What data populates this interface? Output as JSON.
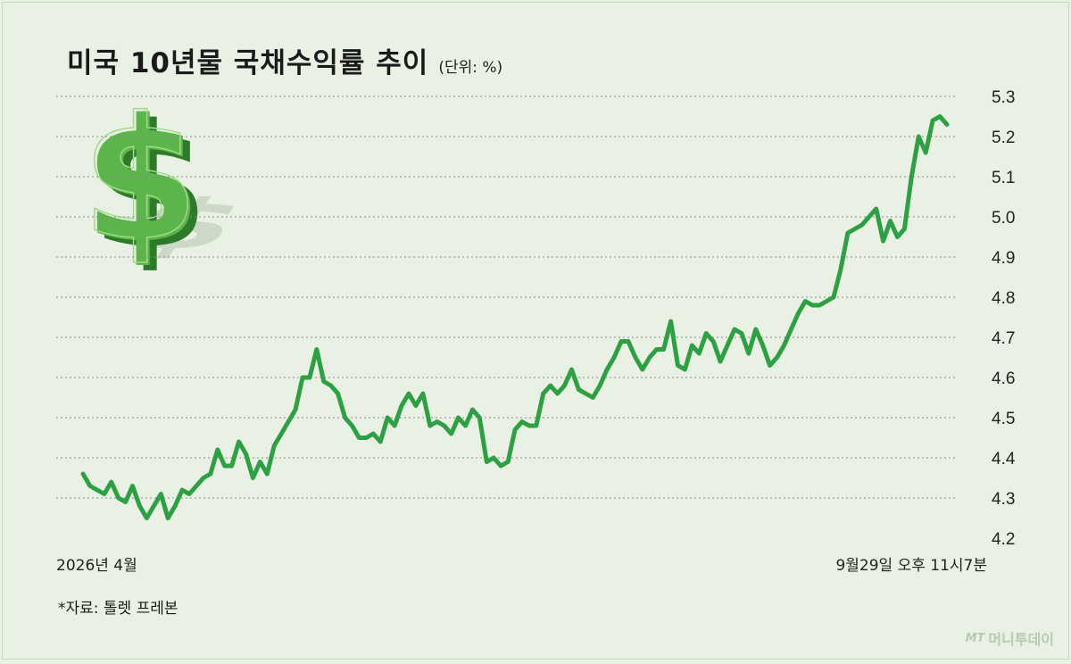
{
  "header": {
    "title": "미국 10년물 국채수익률 추이",
    "unit": "(단위: %)"
  },
  "footer": {
    "source": "*자료: 톨렛 프레본",
    "brand_mark": "MT",
    "brand_name": "머니투데이"
  },
  "icons": {
    "dollar": "dollar-sign-icon",
    "brand": "brand-logo-icon"
  },
  "colors": {
    "background": "#e8f1e4",
    "line": "#2ea043",
    "grid": "#8a8a8a",
    "dollar": "#5cb54a"
  },
  "chart_data": {
    "type": "line",
    "title": "미국 10년물 국채수익률 추이",
    "xlabel": "",
    "ylabel": "",
    "unit": "%",
    "x_start_label": "2026년 4월",
    "x_end_label": "9월29일 오후 11시7분",
    "ylim": [
      4.2,
      5.3
    ],
    "yticks": [
      "5.3",
      "5.2",
      "5.1",
      "5.0",
      "4.9",
      "4.8",
      "4.7",
      "4.6",
      "4.5",
      "4.4",
      "4.3",
      "4.2"
    ],
    "grid": true,
    "series": [
      {
        "values": [
          4.36,
          4.33,
          4.32,
          4.31,
          4.34,
          4.3,
          4.29,
          4.33,
          4.28,
          4.25,
          4.28,
          4.31,
          4.25,
          4.28,
          4.32,
          4.31,
          4.33,
          4.35,
          4.36,
          4.42,
          4.38,
          4.38,
          4.44,
          4.41,
          4.35,
          4.39,
          4.36,
          4.43,
          4.46,
          4.49,
          4.52,
          4.6,
          4.6,
          4.67,
          4.59,
          4.58,
          4.56,
          4.5,
          4.48,
          4.45,
          4.45,
          4.46,
          4.44,
          4.5,
          4.48,
          4.53,
          4.56,
          4.53,
          4.56,
          4.48,
          4.49,
          4.48,
          4.46,
          4.5,
          4.48,
          4.52,
          4.5,
          4.39,
          4.4,
          4.38,
          4.39,
          4.47,
          4.49,
          4.48,
          4.48,
          4.56,
          4.58,
          4.56,
          4.58,
          4.62,
          4.57,
          4.56,
          4.55,
          4.58,
          4.62,
          4.65,
          4.69,
          4.69,
          4.65,
          4.62,
          4.65,
          4.67,
          4.67,
          4.74,
          4.63,
          4.62,
          4.68,
          4.66,
          4.71,
          4.69,
          4.64,
          4.68,
          4.72,
          4.71,
          4.66,
          4.72,
          4.68,
          4.63,
          4.65,
          4.68,
          4.72,
          4.76,
          4.79,
          4.78,
          4.78,
          4.79,
          4.8,
          4.87,
          4.96,
          4.97,
          4.98,
          5.0,
          5.02,
          4.94,
          4.99,
          4.95,
          4.97,
          5.1,
          5.2,
          5.16,
          5.24,
          5.25,
          5.23
        ]
      }
    ]
  }
}
